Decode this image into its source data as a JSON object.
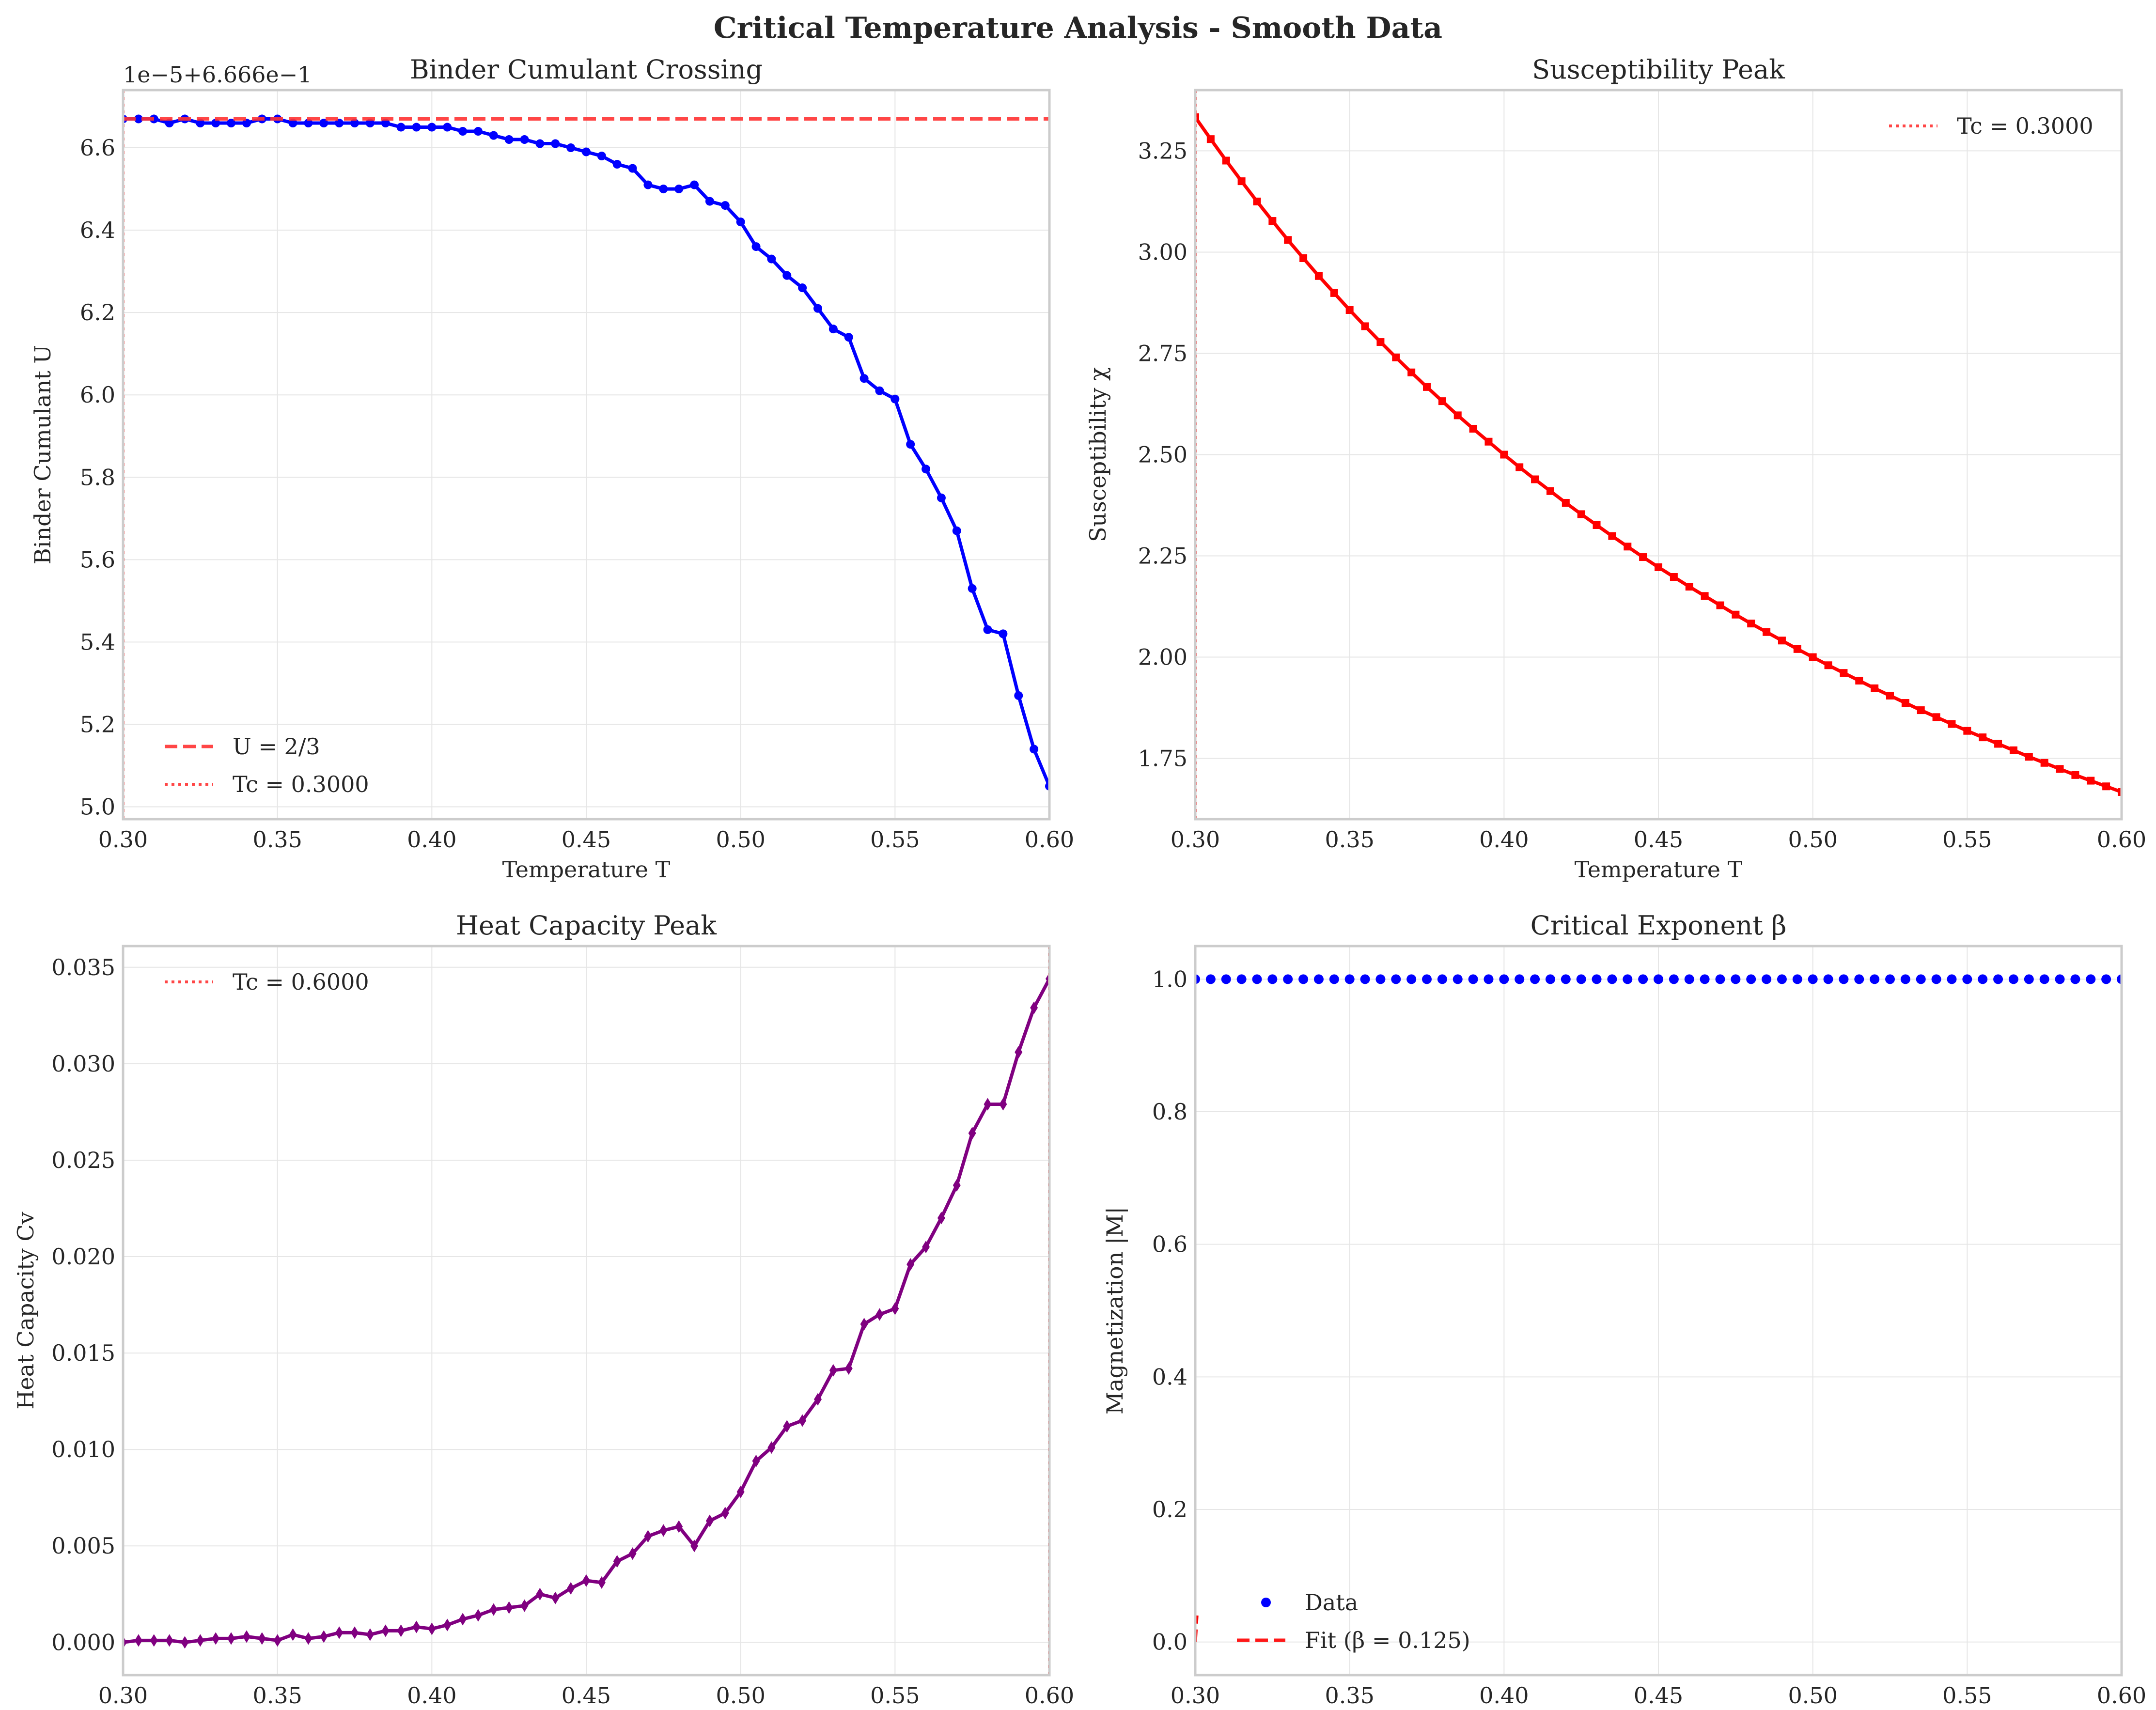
{
  "figure": {
    "title": "Critical Temperature Analysis - Smooth Data"
  },
  "chart_data": [
    {
      "type": "line",
      "title": "Binder Cumulant Crossing",
      "xlabel": "Temperature T",
      "ylabel": "Binder Cumulant U",
      "offset_label": "1e−5+6.666e−1",
      "xlim": [
        0.3,
        0.6
      ],
      "ylim": [
        4.97,
        6.74
      ],
      "xticks": [
        "0.30",
        "0.35",
        "0.40",
        "0.45",
        "0.50",
        "0.55",
        "0.60"
      ],
      "yticks": [
        "5.0",
        "5.2",
        "5.4",
        "5.6",
        "5.8",
        "6.0",
        "6.2",
        "6.4",
        "6.6"
      ],
      "grid": true,
      "legend_position": "lower left",
      "series": [
        {
          "name": "",
          "color": "#0000ff",
          "marker": "circle",
          "x": [
            0.3,
            0.305,
            0.31,
            0.315,
            0.32,
            0.325,
            0.33,
            0.335,
            0.34,
            0.345,
            0.35,
            0.355,
            0.36,
            0.365,
            0.37,
            0.375,
            0.38,
            0.385,
            0.39,
            0.395,
            0.4,
            0.405,
            0.41,
            0.415,
            0.42,
            0.425,
            0.43,
            0.435,
            0.44,
            0.445,
            0.45,
            0.455,
            0.46,
            0.465,
            0.47,
            0.475,
            0.48,
            0.485,
            0.49,
            0.495,
            0.5,
            0.505,
            0.51,
            0.515,
            0.52,
            0.525,
            0.53,
            0.535,
            0.54,
            0.545,
            0.55,
            0.555,
            0.56,
            0.565,
            0.57,
            0.575,
            0.58,
            0.585,
            0.59,
            0.595,
            0.6
          ],
          "y": [
            6.67,
            6.67,
            6.67,
            6.66,
            6.67,
            6.66,
            6.66,
            6.66,
            6.66,
            6.67,
            6.67,
            6.66,
            6.66,
            6.66,
            6.66,
            6.66,
            6.66,
            6.66,
            6.65,
            6.65,
            6.65,
            6.65,
            6.64,
            6.64,
            6.63,
            6.62,
            6.62,
            6.61,
            6.61,
            6.6,
            6.59,
            6.58,
            6.56,
            6.55,
            6.51,
            6.5,
            6.5,
            6.51,
            6.47,
            6.46,
            6.42,
            6.36,
            6.33,
            6.29,
            6.26,
            6.21,
            6.16,
            6.14,
            6.04,
            6.01,
            5.99,
            5.88,
            5.82,
            5.75,
            5.67,
            5.53,
            5.43,
            5.42,
            5.27,
            5.14,
            5.05
          ]
        },
        {
          "name": "U = 2/3",
          "color": "#ff3333",
          "style": "dashed",
          "value": 6.67
        },
        {
          "name": "Tc = 0.3000",
          "color": "#ff3333",
          "style": "dotted",
          "x_value": 0.3
        }
      ]
    },
    {
      "type": "line",
      "title": "Susceptibility Peak",
      "xlabel": "Temperature T",
      "ylabel": "Susceptibility χ",
      "xlim": [
        0.3,
        0.6
      ],
      "ylim": [
        1.6,
        3.4
      ],
      "xticks": [
        "0.30",
        "0.35",
        "0.40",
        "0.45",
        "0.50",
        "0.55",
        "0.60"
      ],
      "yticks": [
        "1.75",
        "2.00",
        "2.25",
        "2.50",
        "2.75",
        "3.00",
        "3.25"
      ],
      "grid": true,
      "legend_position": "upper right",
      "series": [
        {
          "name": "",
          "color": "#ff0000",
          "marker": "square",
          "x": [
            0.3,
            0.305,
            0.31,
            0.315,
            0.32,
            0.325,
            0.33,
            0.335,
            0.34,
            0.345,
            0.35,
            0.355,
            0.36,
            0.365,
            0.37,
            0.375,
            0.38,
            0.385,
            0.39,
            0.395,
            0.4,
            0.405,
            0.41,
            0.415,
            0.42,
            0.425,
            0.43,
            0.435,
            0.44,
            0.445,
            0.45,
            0.455,
            0.46,
            0.465,
            0.47,
            0.475,
            0.48,
            0.485,
            0.49,
            0.495,
            0.5,
            0.505,
            0.51,
            0.515,
            0.52,
            0.525,
            0.53,
            0.535,
            0.54,
            0.545,
            0.55,
            0.555,
            0.56,
            0.565,
            0.57,
            0.575,
            0.58,
            0.585,
            0.59,
            0.595,
            0.6
          ],
          "y": [
            3.333,
            3.279,
            3.226,
            3.175,
            3.125,
            3.077,
            3.03,
            2.985,
            2.941,
            2.899,
            2.857,
            2.817,
            2.778,
            2.74,
            2.703,
            2.667,
            2.632,
            2.597,
            2.564,
            2.532,
            2.5,
            2.469,
            2.439,
            2.41,
            2.381,
            2.353,
            2.326,
            2.299,
            2.273,
            2.247,
            2.222,
            2.198,
            2.174,
            2.151,
            2.128,
            2.105,
            2.083,
            2.062,
            2.041,
            2.02,
            2.0,
            1.98,
            1.961,
            1.942,
            1.923,
            1.905,
            1.887,
            1.869,
            1.852,
            1.835,
            1.818,
            1.802,
            1.786,
            1.77,
            1.754,
            1.739,
            1.724,
            1.709,
            1.695,
            1.681,
            1.667
          ]
        },
        {
          "name": "Tc = 0.3000",
          "color": "#ff3333",
          "style": "dotted",
          "x_value": 0.3
        }
      ]
    },
    {
      "type": "line",
      "title": "Heat Capacity Peak",
      "xlabel": "Temperature T",
      "ylabel": "Heat Capacity Cv",
      "xlim": [
        0.3,
        0.6
      ],
      "ylim": [
        -0.0017,
        0.0361
      ],
      "xticks": [
        "0.30",
        "0.35",
        "0.40",
        "0.45",
        "0.50",
        "0.55",
        "0.60"
      ],
      "yticks": [
        "0.000",
        "0.005",
        "0.010",
        "0.015",
        "0.020",
        "0.025",
        "0.030",
        "0.035"
      ],
      "grid": true,
      "legend_position": "upper left",
      "series": [
        {
          "name": "",
          "color": "#800080",
          "marker": "diamond",
          "x": [
            0.3,
            0.305,
            0.31,
            0.315,
            0.32,
            0.325,
            0.33,
            0.335,
            0.34,
            0.345,
            0.35,
            0.355,
            0.36,
            0.365,
            0.37,
            0.375,
            0.38,
            0.385,
            0.39,
            0.395,
            0.4,
            0.405,
            0.41,
            0.415,
            0.42,
            0.425,
            0.43,
            0.435,
            0.44,
            0.445,
            0.45,
            0.455,
            0.46,
            0.465,
            0.47,
            0.475,
            0.48,
            0.485,
            0.49,
            0.495,
            0.5,
            0.505,
            0.51,
            0.515,
            0.52,
            0.525,
            0.53,
            0.535,
            0.54,
            0.545,
            0.55,
            0.555,
            0.56,
            0.565,
            0.57,
            0.575,
            0.58,
            0.585,
            0.59,
            0.595,
            0.6
          ],
          "y": [
            0.0,
            0.0001,
            0.0001,
            0.0001,
            0.0,
            0.0001,
            0.0002,
            0.0002,
            0.0003,
            0.0002,
            0.0001,
            0.0004,
            0.0002,
            0.0003,
            0.0005,
            0.0005,
            0.0004,
            0.0006,
            0.0006,
            0.0008,
            0.0007,
            0.0009,
            0.0012,
            0.0014,
            0.0017,
            0.0018,
            0.0019,
            0.0025,
            0.0023,
            0.0028,
            0.0032,
            0.0031,
            0.0042,
            0.0046,
            0.0055,
            0.0058,
            0.006,
            0.005,
            0.0063,
            0.0067,
            0.0078,
            0.0094,
            0.0101,
            0.0112,
            0.0115,
            0.0126,
            0.0141,
            0.0142,
            0.0165,
            0.017,
            0.0173,
            0.0196,
            0.0205,
            0.022,
            0.0237,
            0.0264,
            0.0279,
            0.0279,
            0.0306,
            0.0329,
            0.0344
          ]
        },
        {
          "name": "Tc = 0.6000",
          "color": "#ff3333",
          "style": "dotted",
          "x_value": 0.6
        }
      ]
    },
    {
      "type": "scatter",
      "title": "Critical Exponent β",
      "xlabel": "Temperature T",
      "ylabel": "Magnetization |M|",
      "xlim": [
        0.3,
        0.6
      ],
      "ylim": [
        -0.05,
        1.05
      ],
      "xticks": [
        "0.30",
        "0.35",
        "0.40",
        "0.45",
        "0.50",
        "0.55",
        "0.60"
      ],
      "yticks": [
        "0.0",
        "0.2",
        "0.4",
        "0.6",
        "0.8",
        "1.0"
      ],
      "grid": true,
      "legend_position": "lower left",
      "series": [
        {
          "name": "Data",
          "color": "#0000ff",
          "marker": "circle",
          "x": [
            0.3,
            0.305,
            0.31,
            0.315,
            0.32,
            0.325,
            0.33,
            0.335,
            0.34,
            0.345,
            0.35,
            0.355,
            0.36,
            0.365,
            0.37,
            0.375,
            0.38,
            0.385,
            0.39,
            0.395,
            0.4,
            0.405,
            0.41,
            0.415,
            0.42,
            0.425,
            0.43,
            0.435,
            0.44,
            0.445,
            0.45,
            0.455,
            0.46,
            0.465,
            0.47,
            0.475,
            0.48,
            0.485,
            0.49,
            0.495,
            0.5,
            0.505,
            0.51,
            0.515,
            0.52,
            0.525,
            0.53,
            0.535,
            0.54,
            0.545,
            0.55,
            0.555,
            0.56,
            0.565,
            0.57,
            0.575,
            0.58,
            0.585,
            0.59,
            0.595,
            0.6
          ],
          "y": [
            1.0,
            1.0,
            1.0,
            1.0,
            1.0,
            1.0,
            1.0,
            1.0,
            1.0,
            1.0,
            1.0,
            1.0,
            1.0,
            1.0,
            1.0,
            1.0,
            1.0,
            1.0,
            1.0,
            1.0,
            1.0,
            1.0,
            1.0,
            1.0,
            1.0,
            1.0,
            1.0,
            1.0,
            1.0,
            1.0,
            1.0,
            1.0,
            1.0,
            1.0,
            1.0,
            1.0,
            1.0,
            1.0,
            1.0,
            1.0,
            1.0,
            1.0,
            1.0,
            1.0,
            1.0,
            1.0,
            1.0,
            1.0,
            1.0,
            1.0,
            1.0,
            1.0,
            1.0,
            1.0,
            1.0,
            1.0,
            1.0,
            1.0,
            1.0,
            1.0,
            1.0
          ]
        },
        {
          "name": "Fit (β = 0.125)",
          "color": "#ff0000",
          "style": "dashed",
          "x": [
            0.3,
            0.3005
          ],
          "y": [
            0.0,
            0.04
          ]
        }
      ]
    }
  ]
}
